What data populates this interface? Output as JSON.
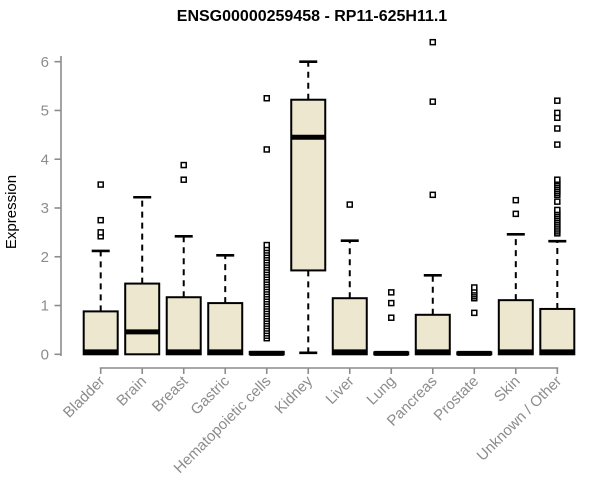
{
  "chart_data": {
    "type": "boxplot",
    "title": "ENSG00000259458 - RP11-625H11.1",
    "ylabel": "Expression",
    "xlabel": "",
    "yticks": [
      0,
      1,
      2,
      3,
      4,
      5,
      6
    ],
    "ylim": [
      0,
      6.5
    ],
    "grid": false,
    "legend": false,
    "categories": [
      "Bladder",
      "Brain",
      "Breast",
      "Gastric",
      "Hematopoietic cells",
      "Kidney",
      "Liver",
      "Lung",
      "Pancreas",
      "Prostate",
      "Skin",
      "Unknown / Other"
    ],
    "boxes": [
      {
        "category": "Bladder",
        "q1": 0,
        "median": 0.05,
        "q3": 0.88,
        "whisker_low": 0,
        "whisker_high": 2.12,
        "outliers": [
          2.42,
          2.5,
          2.75,
          3.48
        ]
      },
      {
        "category": "Brain",
        "q1": 0,
        "median": 0.46,
        "q3": 1.45,
        "whisker_low": 0,
        "whisker_high": 3.22,
        "outliers": []
      },
      {
        "category": "Breast",
        "q1": 0,
        "median": 0.05,
        "q3": 1.17,
        "whisker_low": 0,
        "whisker_high": 2.42,
        "outliers": [
          3.58,
          3.88
        ]
      },
      {
        "category": "Gastric",
        "q1": 0,
        "median": 0.05,
        "q3": 1.05,
        "whisker_low": 0,
        "whisker_high": 2.03,
        "outliers": []
      },
      {
        "category": "Hematopoietic cells",
        "q1": 0,
        "median": 0.02,
        "q3": 0.05,
        "whisker_low": 0,
        "whisker_high": 0.05,
        "outliers": [
          0.33,
          0.38,
          0.43,
          0.48,
          0.53,
          0.58,
          0.63,
          0.68,
          0.73,
          0.78,
          0.83,
          0.88,
          0.93,
          0.98,
          1.03,
          1.08,
          1.13,
          1.18,
          1.23,
          1.28,
          1.33,
          1.38,
          1.43,
          1.48,
          1.53,
          1.58,
          1.63,
          1.68,
          1.73,
          1.78,
          1.83,
          1.88,
          1.93,
          1.98,
          2.03,
          2.08,
          2.13,
          2.18,
          2.24,
          4.2,
          5.25
        ]
      },
      {
        "category": "Kidney",
        "q1": 1.72,
        "median": 4.45,
        "q3": 5.22,
        "whisker_low": 0.03,
        "whisker_high": 6.0,
        "outliers": []
      },
      {
        "category": "Liver",
        "q1": 0,
        "median": 0.05,
        "q3": 1.15,
        "whisker_low": 0,
        "whisker_high": 2.33,
        "outliers": [
          3.07
        ]
      },
      {
        "category": "Lung",
        "q1": 0,
        "median": 0.02,
        "q3": 0.04,
        "whisker_low": 0,
        "whisker_high": 0.04,
        "outliers": [
          0.75,
          1.05,
          1.27
        ]
      },
      {
        "category": "Pancreas",
        "q1": 0,
        "median": 0.05,
        "q3": 0.81,
        "whisker_low": 0,
        "whisker_high": 1.62,
        "outliers": [
          3.27,
          5.18,
          6.4
        ]
      },
      {
        "category": "Prostate",
        "q1": 0,
        "median": 0.02,
        "q3": 0.04,
        "whisker_low": 0,
        "whisker_high": 0.04,
        "outliers": [
          0.85,
          1.15,
          1.19,
          1.23,
          1.27,
          1.31,
          1.37
        ]
      },
      {
        "category": "Skin",
        "q1": 0,
        "median": 0.05,
        "q3": 1.11,
        "whisker_low": 0,
        "whisker_high": 2.46,
        "outliers": [
          2.88,
          3.16
        ]
      },
      {
        "category": "Unknown / Other",
        "q1": 0,
        "median": 0.05,
        "q3": 0.93,
        "whisker_low": 0,
        "whisker_high": 2.32,
        "outliers": [
          2.48,
          2.52,
          2.56,
          2.6,
          2.64,
          2.68,
          2.72,
          2.76,
          2.8,
          2.84,
          2.88,
          2.92,
          2.96,
          3.13,
          3.27,
          3.31,
          3.35,
          3.39,
          3.43,
          3.47,
          3.51,
          3.55,
          3.58,
          4.3,
          4.63,
          4.85,
          4.95,
          5.2
        ]
      }
    ],
    "colors": {
      "box_fill": "#ECE7CE",
      "box_stroke": "#000000",
      "axis": "#8C8C8C",
      "tick_label": "#8C8C8C",
      "title": "#000000",
      "background": "#FFFFFF"
    }
  }
}
